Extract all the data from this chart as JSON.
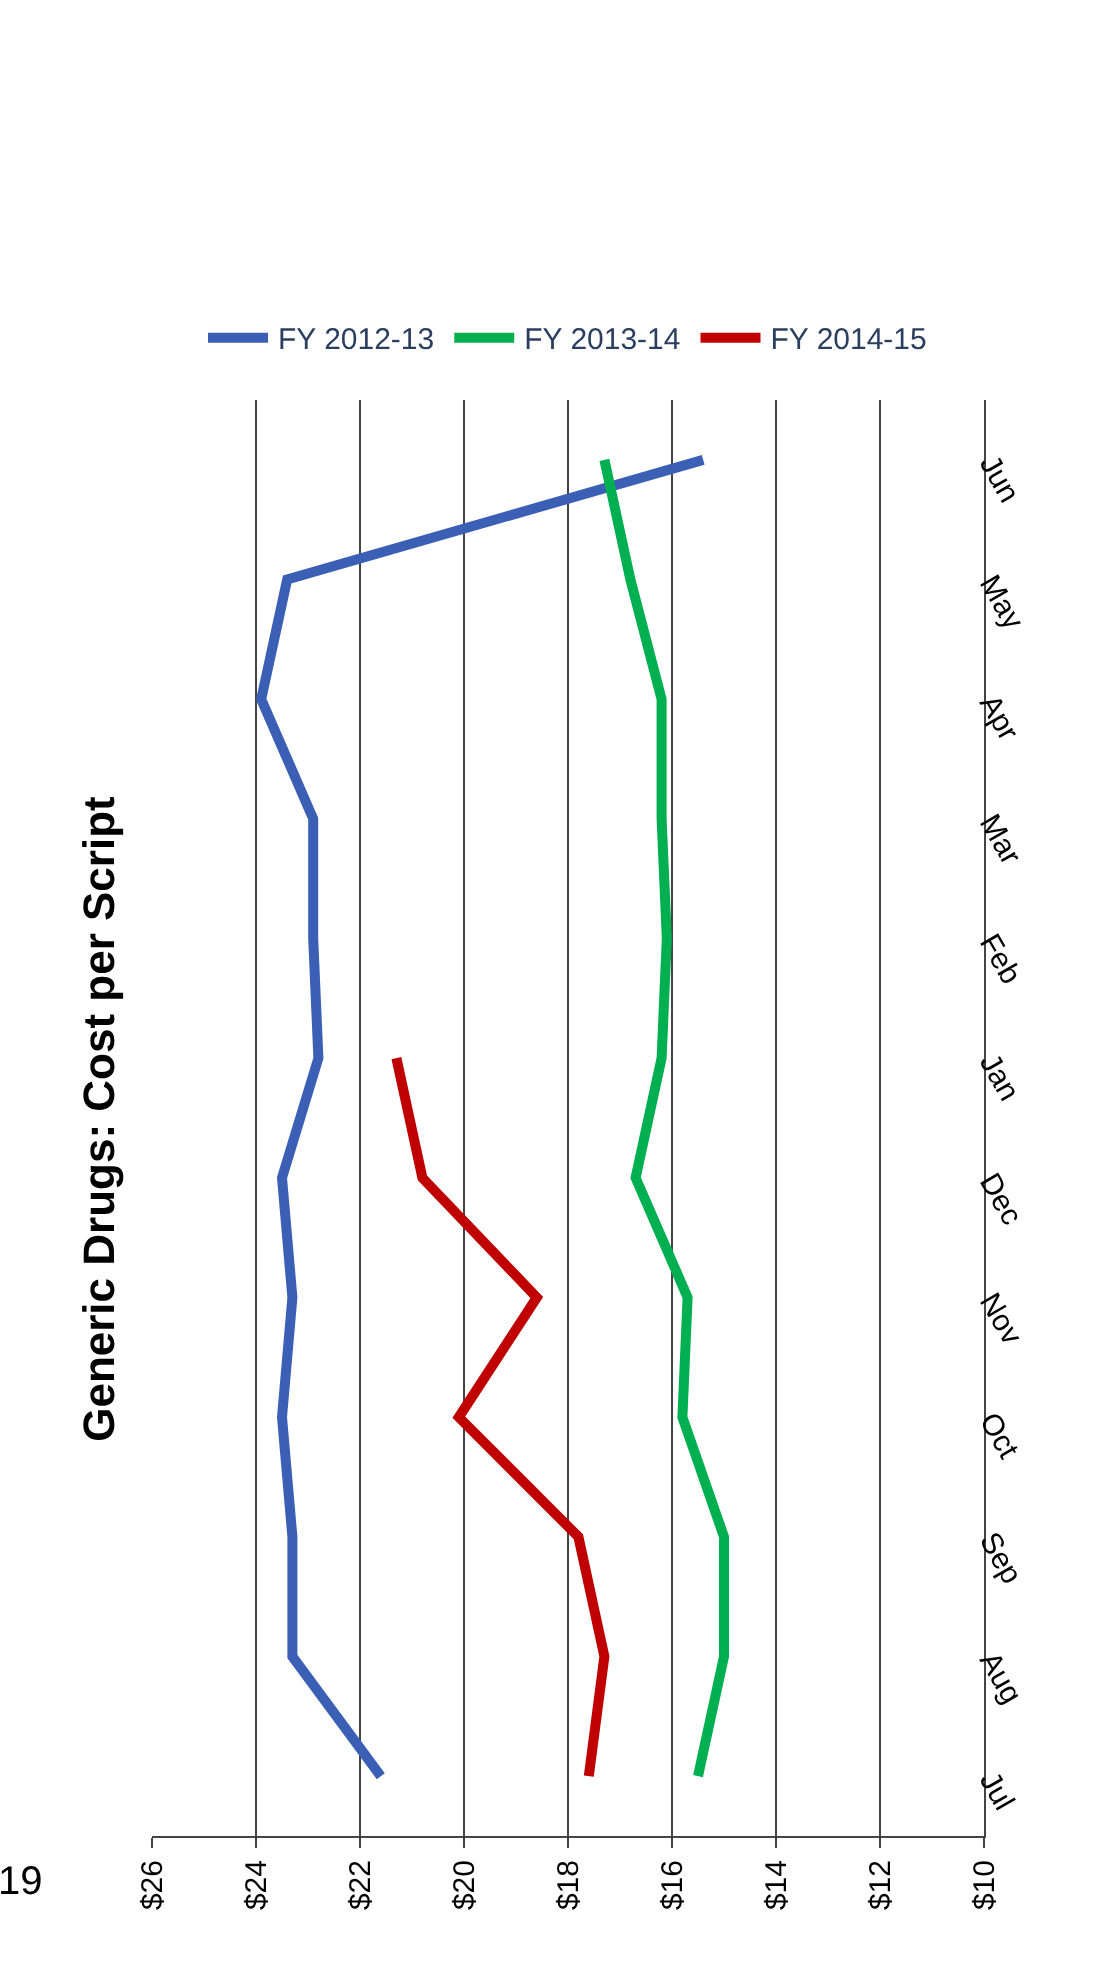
{
  "chart_data": {
    "type": "line",
    "title": "Generic Drugs: Cost per Script",
    "categories": [
      "Jun",
      "May",
      "Apr",
      "Mar",
      "Feb",
      "Jan",
      "Dec",
      "Nov",
      "Oct",
      "Sep",
      "Aug",
      "Jul"
    ],
    "series": [
      {
        "name": "FY 2012-13",
        "color": "#3a5fb5",
        "values": [
          15.4,
          23.4,
          23.9,
          22.9,
          22.9,
          22.8,
          23.5,
          23.3,
          23.5,
          23.3,
          23.3,
          21.6
        ]
      },
      {
        "name": "FY 2013-14",
        "color": "#00b050",
        "values": [
          17.3,
          16.8,
          16.2,
          16.2,
          16.1,
          16.2,
          16.7,
          15.7,
          15.8,
          15.0,
          15.0,
          15.5
        ]
      },
      {
        "name": "FY 2014-15",
        "color": "#c00000",
        "values": [
          null,
          null,
          null,
          null,
          null,
          21.3,
          20.8,
          18.6,
          20.1,
          17.8,
          17.3,
          17.6
        ]
      }
    ],
    "orientation": "horizontal",
    "xlim": [
      26,
      10
    ],
    "xticks": [
      {
        "value": 26,
        "label": "$26"
      },
      {
        "value": 24,
        "label": "$24"
      },
      {
        "value": 22,
        "label": "$22"
      },
      {
        "value": 20,
        "label": "$20"
      },
      {
        "value": 18,
        "label": "$18"
      },
      {
        "value": 16,
        "label": "$16"
      },
      {
        "value": 14,
        "label": "$14"
      },
      {
        "value": 12,
        "label": "$12"
      },
      {
        "value": 10,
        "label": "$10"
      }
    ],
    "grid": "x",
    "legend": "top",
    "marker": "none",
    "line_style": "solid",
    "annotations": [
      "19"
    ]
  }
}
